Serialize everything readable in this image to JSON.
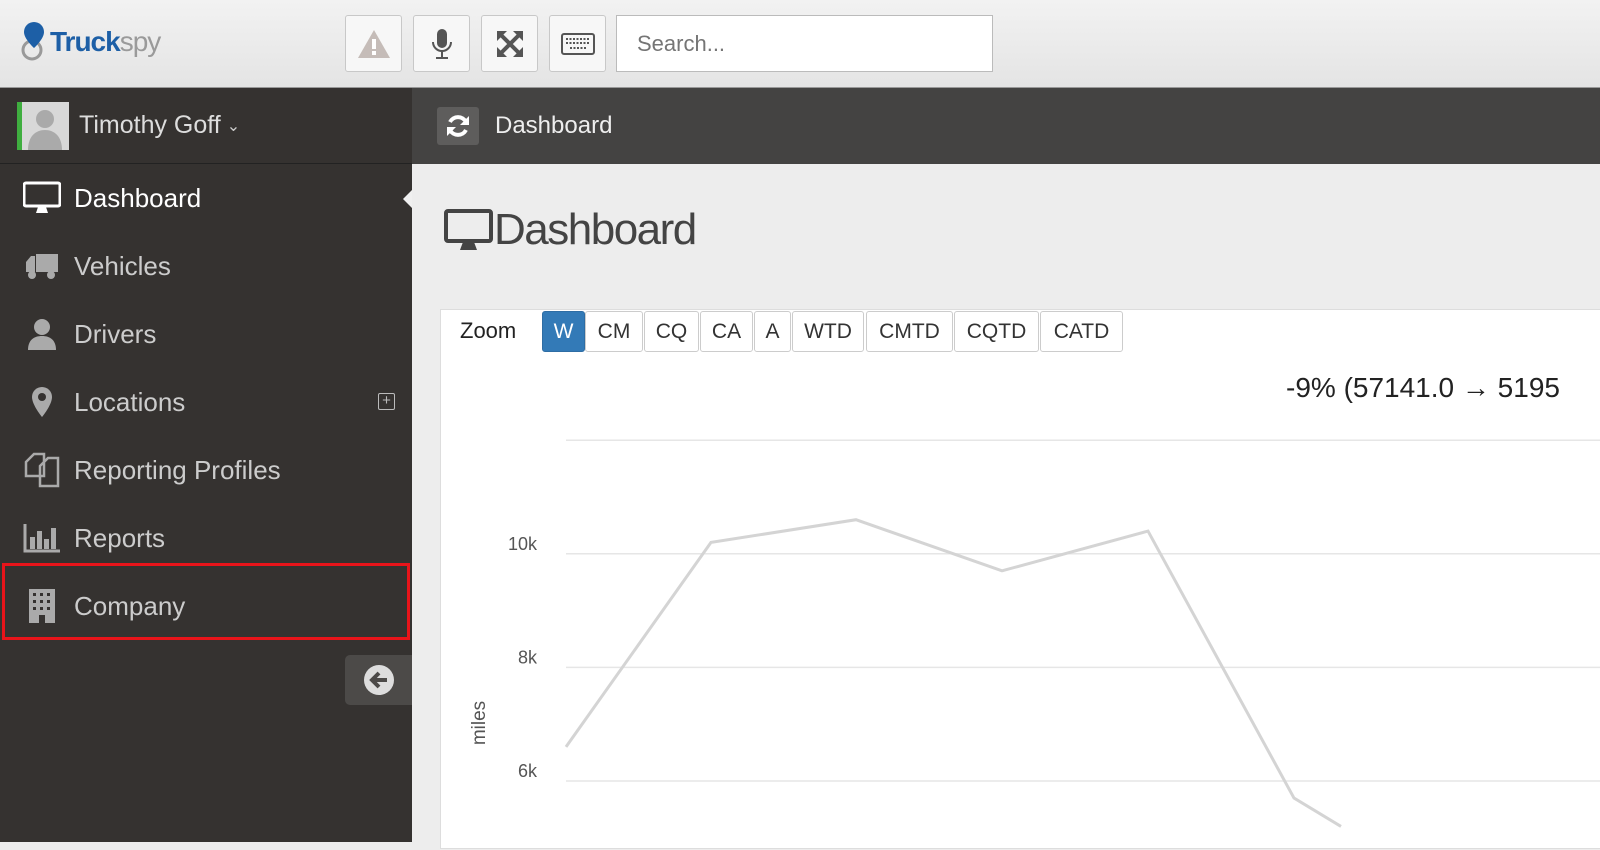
{
  "app": {
    "logo_a": "Truck",
    "logo_b": "spy"
  },
  "toolbar": {
    "icons": [
      "warning-icon",
      "microphone-icon",
      "fullscreen-icon",
      "keyboard-icon"
    ],
    "search_placeholder": "Search..."
  },
  "sidebar": {
    "user_name": "Timothy Goff",
    "items": [
      {
        "label": "Dashboard",
        "icon": "monitor-icon",
        "active": true
      },
      {
        "label": "Vehicles",
        "icon": "truck-icon"
      },
      {
        "label": "Drivers",
        "icon": "user-icon"
      },
      {
        "label": "Locations",
        "icon": "map-marker-icon"
      },
      {
        "label": "Reporting Profiles",
        "icon": "copy-icon"
      },
      {
        "label": "Reports",
        "icon": "bar-chart-icon"
      },
      {
        "label": "Company",
        "icon": "building-icon",
        "highlighted": true
      }
    ]
  },
  "breadcrumb": {
    "label": "Dashboard"
  },
  "page": {
    "title": "Dashboard"
  },
  "zoom": {
    "label": "Zoom",
    "options": [
      "W",
      "CM",
      "CQ",
      "CA",
      "A",
      "WTD",
      "CMTD",
      "CQTD",
      "CATD"
    ],
    "selected": "W"
  },
  "summary": "-9% (57141.0 → 5195",
  "colors": {
    "accent": "#337ab7",
    "highlight": "#e8141a",
    "line": "#d4d4d4"
  },
  "chart_data": {
    "type": "line",
    "ylabel": "miles",
    "ytick_labels": [
      "6k",
      "8k",
      "10k"
    ],
    "ylim": [
      5000,
      12000
    ],
    "grid": true,
    "series": [
      {
        "values": [
          6600,
          10200,
          10600,
          9700,
          10400,
          5700,
          5200
        ]
      }
    ]
  }
}
